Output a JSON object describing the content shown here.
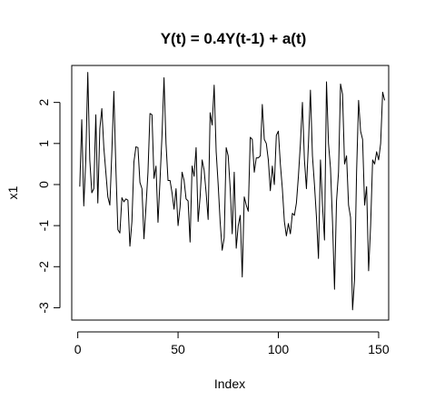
{
  "chart_data": {
    "type": "line",
    "title": "Y(t) = 0.4Y(t-1) + a(t)",
    "xlabel": "Index",
    "ylabel": "x1",
    "xlim": [
      -3,
      155
    ],
    "ylim": [
      -3.3,
      2.9
    ],
    "grid": false,
    "x_ticks": [
      0,
      50,
      100,
      150
    ],
    "y_ticks": [
      -3,
      -2,
      -1,
      0,
      1,
      2
    ],
    "line_color": "#000000",
    "series": [
      {
        "values": [
          -0.05,
          1.58,
          -0.52,
          0.6,
          2.73,
          0.6,
          -0.2,
          -0.1,
          1.7,
          -0.45,
          1.36,
          1.85,
          0.9,
          0.3,
          -0.3,
          -0.5,
          0.8,
          2.27,
          0.4,
          -1.1,
          -1.18,
          -0.32,
          -0.42,
          -0.35,
          -0.38,
          -1.5,
          -0.9,
          0.55,
          0.92,
          0.9,
          0.05,
          -0.1,
          -1.32,
          -0.55,
          0.3,
          1.73,
          1.7,
          0.15,
          0.45,
          -0.92,
          0.1,
          1.2,
          2.6,
          1.0,
          0.1,
          0.1,
          -0.2,
          -0.6,
          -0.1,
          -1.0,
          -0.55,
          0.3,
          0.1,
          -0.35,
          -0.4,
          -1.4,
          0.45,
          0.2,
          0.9,
          -0.9,
          -0.3,
          0.6,
          0.35,
          -0.2,
          -0.85,
          1.75,
          1.45,
          2.42,
          0.8,
          0.0,
          -0.92,
          -1.6,
          -1.3,
          0.9,
          0.7,
          -0.1,
          -1.2,
          0.3,
          -1.55,
          -1.0,
          -0.75,
          -2.25,
          -0.3,
          -0.5,
          -0.65,
          1.15,
          1.1,
          0.3,
          0.65,
          0.65,
          0.7,
          1.95,
          1.1,
          1.0,
          0.6,
          -0.15,
          0.45,
          0.0,
          1.2,
          1.3,
          0.5,
          -0.1,
          -0.9,
          -1.25,
          -0.95,
          -1.2,
          -0.7,
          -0.75,
          -0.45,
          0.2,
          1.0,
          2.0,
          0.6,
          -0.1,
          1.0,
          2.3,
          0.7,
          0.0,
          -0.8,
          -1.8,
          0.6,
          -0.5,
          -1.35,
          2.5,
          1.0,
          0.4,
          -0.9,
          -2.55,
          -0.4,
          0.3,
          2.45,
          2.2,
          0.5,
          0.7,
          -0.5,
          -0.8,
          -3.05,
          -2.3,
          0.3,
          2.05,
          1.3,
          1.1,
          -0.5,
          -0.05,
          -2.1,
          -1.0,
          0.6,
          0.5,
          0.8,
          0.6,
          1.0,
          2.25,
          2.05
        ]
      }
    ]
  }
}
